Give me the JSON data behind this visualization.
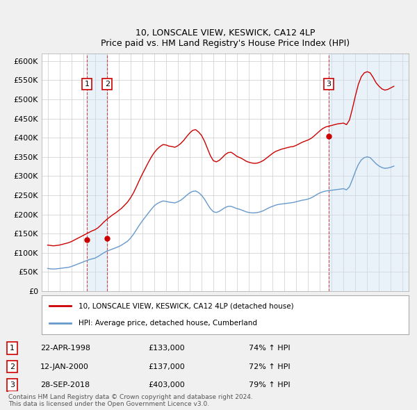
{
  "title": "10, LONSCALE VIEW, KESWICK, CA12 4LP",
  "subtitle": "Price paid vs. HM Land Registry's House Price Index (HPI)",
  "ylabel": "",
  "ylim": [
    0,
    620000
  ],
  "yticks": [
    0,
    50000,
    100000,
    150000,
    200000,
    250000,
    300000,
    350000,
    400000,
    450000,
    500000,
    550000,
    600000
  ],
  "ytick_labels": [
    "£0",
    "£50K",
    "£100K",
    "£150K",
    "£200K",
    "£250K",
    "£300K",
    "£350K",
    "£400K",
    "£450K",
    "£500K",
    "£550K",
    "£600K"
  ],
  "background_color": "#f0f0f0",
  "plot_bg_color": "#ffffff",
  "grid_color": "#cccccc",
  "red_color": "#cc0000",
  "blue_color": "#6699cc",
  "sale_color": "#cc0000",
  "transaction_box_color": "#cc0000",
  "legend_line_red": "#cc0000",
  "legend_line_blue": "#6699cc",
  "sale_dates": [
    1998.31,
    2000.03,
    2018.74
  ],
  "sale_prices": [
    133000,
    137000,
    403000
  ],
  "sale_labels": [
    "1",
    "2",
    "3"
  ],
  "transactions": [
    {
      "label": "1",
      "date": "22-APR-1998",
      "price": "£133,000",
      "hpi": "74% ↑ HPI"
    },
    {
      "label": "2",
      "date": "12-JAN-2000",
      "price": "£137,000",
      "hpi": "72% ↑ HPI"
    },
    {
      "label": "3",
      "date": "28-SEP-2018",
      "price": "£403,000",
      "hpi": "79% ↑ HPI"
    }
  ],
  "legend_text_red": "10, LONSCALE VIEW, KESWICK, CA12 4LP (detached house)",
  "legend_text_blue": "HPI: Average price, detached house, Cumberland",
  "footer": "Contains HM Land Registry data © Crown copyright and database right 2024.\nThis data is licensed under the Open Government Licence v3.0.",
  "hpi_data": {
    "years": [
      1995.0,
      1995.25,
      1995.5,
      1995.75,
      1996.0,
      1996.25,
      1996.5,
      1996.75,
      1997.0,
      1997.25,
      1997.5,
      1997.75,
      1998.0,
      1998.25,
      1998.5,
      1998.75,
      1999.0,
      1999.25,
      1999.5,
      1999.75,
      2000.0,
      2000.25,
      2000.5,
      2000.75,
      2001.0,
      2001.25,
      2001.5,
      2001.75,
      2002.0,
      2002.25,
      2002.5,
      2002.75,
      2003.0,
      2003.25,
      2003.5,
      2003.75,
      2004.0,
      2004.25,
      2004.5,
      2004.75,
      2005.0,
      2005.25,
      2005.5,
      2005.75,
      2006.0,
      2006.25,
      2006.5,
      2006.75,
      2007.0,
      2007.25,
      2007.5,
      2007.75,
      2008.0,
      2008.25,
      2008.5,
      2008.75,
      2009.0,
      2009.25,
      2009.5,
      2009.75,
      2010.0,
      2010.25,
      2010.5,
      2010.75,
      2011.0,
      2011.25,
      2011.5,
      2011.75,
      2012.0,
      2012.25,
      2012.5,
      2012.75,
      2013.0,
      2013.25,
      2013.5,
      2013.75,
      2014.0,
      2014.25,
      2014.5,
      2014.75,
      2015.0,
      2015.25,
      2015.5,
      2015.75,
      2016.0,
      2016.25,
      2016.5,
      2016.75,
      2017.0,
      2017.25,
      2017.5,
      2017.75,
      2018.0,
      2018.25,
      2018.5,
      2018.75,
      2019.0,
      2019.25,
      2019.5,
      2019.75,
      2020.0,
      2020.25,
      2020.5,
      2020.75,
      2021.0,
      2021.25,
      2021.5,
      2021.75,
      2022.0,
      2022.25,
      2022.5,
      2022.75,
      2023.0,
      2023.25,
      2023.5,
      2023.75,
      2024.0,
      2024.25
    ],
    "hpi_values": [
      59000,
      58000,
      57500,
      58000,
      59000,
      60000,
      61000,
      62000,
      64000,
      67000,
      70000,
      73000,
      76000,
      79000,
      82000,
      84000,
      86000,
      90000,
      95000,
      100000,
      104000,
      107000,
      110000,
      113000,
      116000,
      120000,
      125000,
      130000,
      138000,
      148000,
      160000,
      172000,
      183000,
      193000,
      203000,
      213000,
      222000,
      228000,
      232000,
      235000,
      234000,
      232000,
      231000,
      230000,
      233000,
      237000,
      243000,
      250000,
      256000,
      260000,
      261000,
      257000,
      250000,
      240000,
      227000,
      215000,
      207000,
      205000,
      208000,
      213000,
      218000,
      221000,
      221000,
      218000,
      215000,
      213000,
      210000,
      207000,
      205000,
      204000,
      204000,
      205000,
      207000,
      210000,
      214000,
      218000,
      221000,
      224000,
      226000,
      227000,
      228000,
      229000,
      230000,
      231000,
      233000,
      235000,
      237000,
      238000,
      240000,
      243000,
      247000,
      252000,
      256000,
      259000,
      261000,
      262000,
      263000,
      264000,
      265000,
      266000,
      267000,
      264000,
      272000,
      291000,
      312000,
      330000,
      342000,
      348000,
      350000,
      348000,
      340000,
      332000,
      326000,
      322000,
      320000,
      321000,
      323000,
      326000
    ],
    "red_values": [
      120000,
      119000,
      118000,
      119000,
      120000,
      122000,
      124000,
      126000,
      129000,
      133000,
      137000,
      141000,
      145000,
      149000,
      153000,
      157000,
      160000,
      165000,
      172000,
      180000,
      187000,
      193000,
      199000,
      204000,
      210000,
      216000,
      224000,
      232000,
      243000,
      256000,
      272000,
      289000,
      305000,
      320000,
      335000,
      349000,
      361000,
      370000,
      377000,
      382000,
      381000,
      378000,
      377000,
      375000,
      379000,
      385000,
      393000,
      403000,
      412000,
      419000,
      421000,
      415000,
      406000,
      391000,
      372000,
      353000,
      340000,
      337000,
      341000,
      348000,
      356000,
      361000,
      362000,
      357000,
      351000,
      348000,
      344000,
      339000,
      336000,
      334000,
      333000,
      334000,
      337000,
      341000,
      347000,
      353000,
      359000,
      364000,
      367000,
      370000,
      372000,
      374000,
      376000,
      377000,
      380000,
      384000,
      388000,
      391000,
      394000,
      398000,
      404000,
      411000,
      418000,
      424000,
      428000,
      430000,
      432000,
      434000,
      436000,
      437000,
      438000,
      434000,
      446000,
      476000,
      509000,
      539000,
      559000,
      569000,
      572000,
      569000,
      557000,
      543000,
      534000,
      527000,
      524000,
      526000,
      530000,
      534000
    ]
  },
  "xlim_start": 1994.5,
  "xlim_end": 2025.5,
  "xticks": [
    1995,
    1996,
    1997,
    1998,
    1999,
    2000,
    2001,
    2002,
    2003,
    2004,
    2005,
    2006,
    2007,
    2008,
    2009,
    2010,
    2011,
    2012,
    2013,
    2014,
    2015,
    2016,
    2017,
    2018,
    2019,
    2020,
    2021,
    2022,
    2023,
    2024,
    2025
  ]
}
